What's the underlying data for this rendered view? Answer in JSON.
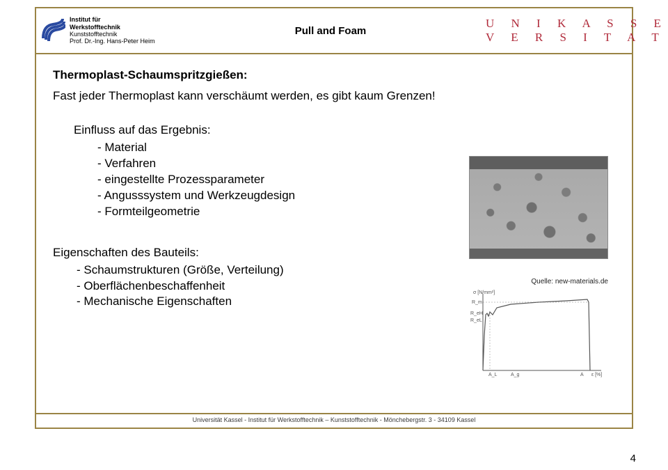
{
  "header": {
    "institute": {
      "l1": "Institut für",
      "l2": "Werkstofftechnik",
      "l3": "Kunststofftechnik",
      "l4": "Prof. Dr.-Ing. Hans-Peter Heim"
    },
    "title": "Pull and Foam",
    "uni": {
      "l1": "U N I K A S S E L",
      "l2": "V E R S I T A T"
    },
    "logo_colors": {
      "blue": "#2a4aa0",
      "gray": "#9a8445"
    }
  },
  "content": {
    "heading": "Thermoplast-Schaumspritzgießen:",
    "subheading": "Fast jeder Thermoplast kann verschäumt werden, es gibt kaum Grenzen!",
    "block1_lead": "Einfluss auf das Ergebnis:",
    "block1_items": [
      "- Material",
      "- Verfahren",
      "- eingestellte Prozessparameter",
      "- Angusssystem und Werkzeugdesign",
      "- Formteilgeometrie"
    ],
    "block2_lead": "Eigenschaften des Bauteils:",
    "block2_items": [
      "- Schaumstrukturen (Größe, Verteilung)",
      "- Oberflächenbeschaffenheit",
      "- Mechanische Eigenschaften"
    ],
    "source": "Quelle: new-materials.de"
  },
  "chart": {
    "type": "line",
    "ylabel": "σ [N/mm²]",
    "xlabel": "ε [%]",
    "y_markers": [
      "R_m",
      "R_eH",
      "R_eL"
    ],
    "x_markers": [
      "A_L",
      "A_g",
      "A"
    ],
    "axis_color": "#555555",
    "line_color": "#555555",
    "curve_points": [
      [
        20,
        120
      ],
      [
        22,
        70
      ],
      [
        24,
        40
      ],
      [
        26,
        38
      ],
      [
        28,
        42
      ],
      [
        30,
        36
      ],
      [
        34,
        40
      ],
      [
        40,
        30
      ],
      [
        60,
        25
      ],
      [
        100,
        22
      ],
      [
        140,
        20
      ],
      [
        170,
        18
      ],
      [
        172,
        22
      ],
      [
        174,
        120
      ]
    ],
    "background_color": "#ffffff"
  },
  "footer": {
    "text": "Universität Kassel - Institut für Werkstofftechnik – Kunststofftechnik - Mönchebergstr. 3 - 34109 Kassel",
    "page": "4"
  }
}
